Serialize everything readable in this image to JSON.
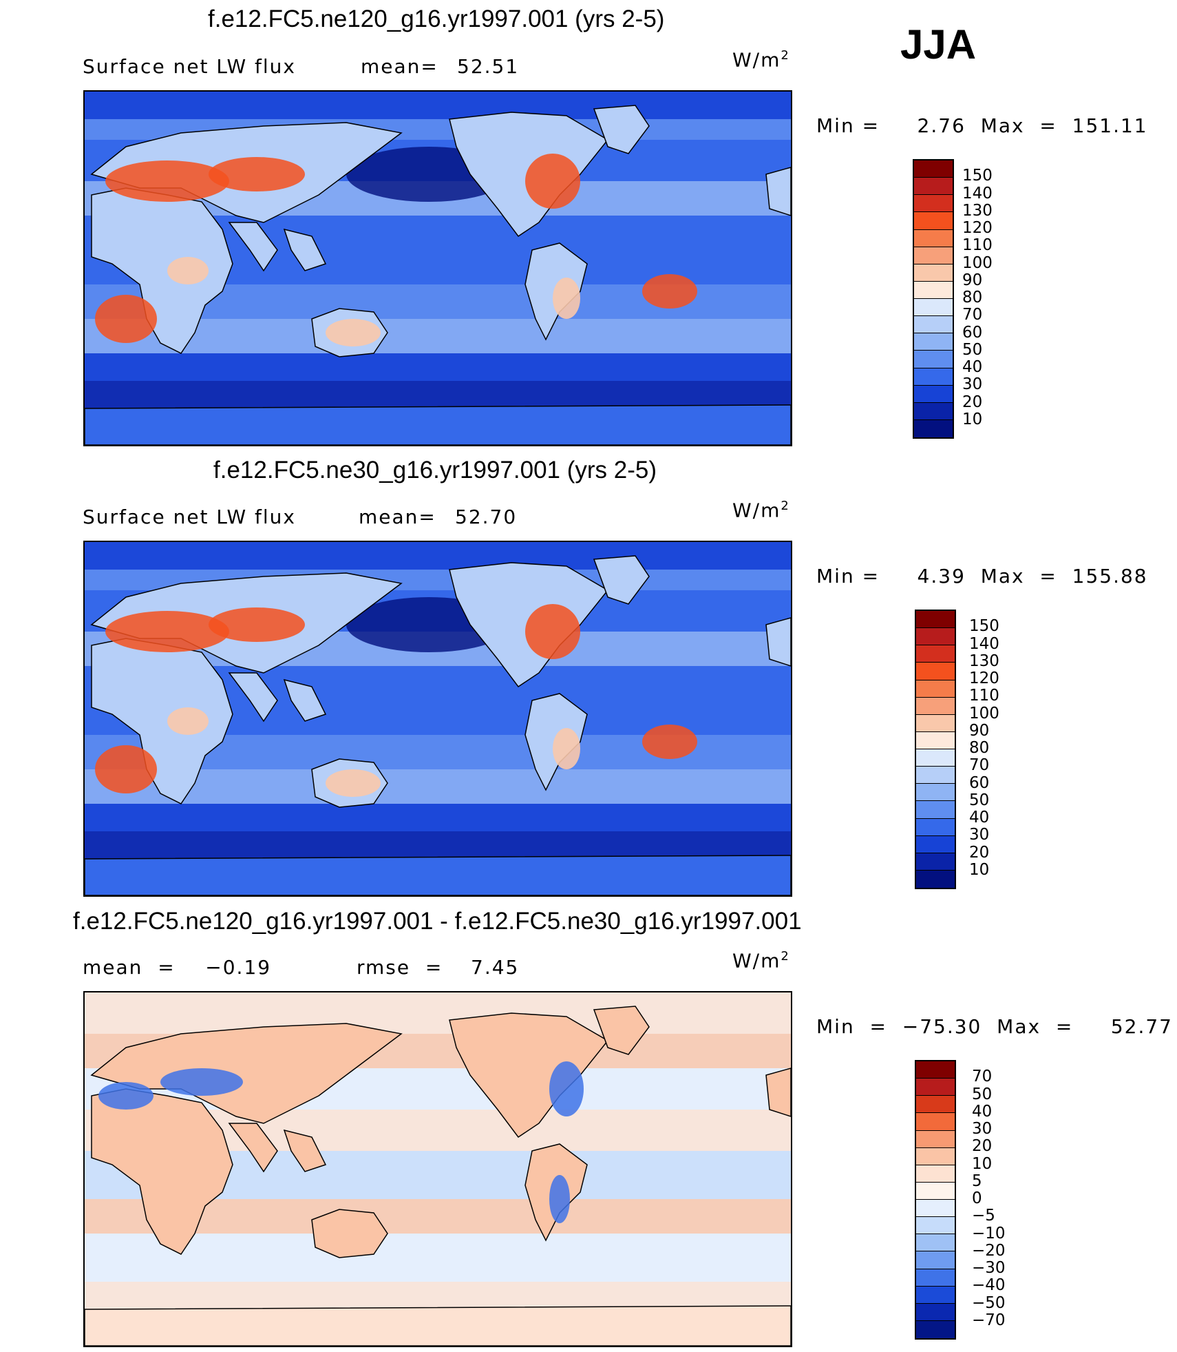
{
  "season": "JJA",
  "units": "W/m",
  "units_sup": "2",
  "panels": [
    {
      "title": "f.e12.FC5.ne120_g16.yr1997.001 (yrs 2-5)",
      "left_label": "Surface net LW flux",
      "stat_label": "mean=",
      "stat_value": "52.51",
      "range_text": "Min =     2.76  Max  =  151.11",
      "colorbar_labels": [
        "150",
        "140",
        "130",
        "120",
        "110",
        "100",
        "90",
        "80",
        "70",
        "60",
        "50",
        "40",
        "30",
        "20",
        "10"
      ]
    },
    {
      "title": "f.e12.FC5.ne30_g16.yr1997.001 (yrs 2-5)",
      "left_label": "Surface net LW flux",
      "stat_label": "mean=",
      "stat_value": "52.70",
      "range_text": "Min =     4.39  Max  =  155.88",
      "colorbar_labels": [
        "150",
        "140",
        "130",
        "120",
        "110",
        "100",
        "90",
        "80",
        "70",
        "60",
        "50",
        "40",
        "30",
        "20",
        "10"
      ]
    },
    {
      "title": "f.e12.FC5.ne120_g16.yr1997.001 - f.e12.FC5.ne30_g16.yr1997.001",
      "left_label": "mean  =    −0.19",
      "stat_label": "rmse  =",
      "stat_value": "7.45",
      "range_text": "Min  =  −75.30  Max  =     52.77",
      "colorbar_labels": [
        "70",
        "50",
        "40",
        "30",
        "20",
        "10",
        "5",
        "0",
        "−5",
        "−10",
        "−20",
        "−30",
        "−40",
        "−50",
        "−70"
      ]
    }
  ],
  "colors": {
    "abs_scale": [
      "#7f0000",
      "#b71c1c",
      "#d32f1e",
      "#f4511e",
      "#f57c4a",
      "#f7a07a",
      "#f9c8ab",
      "#fde9dc",
      "#dbe8fb",
      "#b6cff8",
      "#8fb4f4",
      "#5f8ef0",
      "#3569ea",
      "#1743d6",
      "#0a23a8",
      "#021080"
    ],
    "diff_scale": [
      "#7f0000",
      "#b71c1c",
      "#d83a1a",
      "#f26a3a",
      "#f79a72",
      "#fac4a6",
      "#fde2d2",
      "#fef4ec",
      "#e5effd",
      "#c6dcfa",
      "#9fc1f5",
      "#6f9cf0",
      "#3f73e8",
      "#1b4bd8",
      "#0a28b0",
      "#031687"
    ],
    "coast": "#000000"
  }
}
